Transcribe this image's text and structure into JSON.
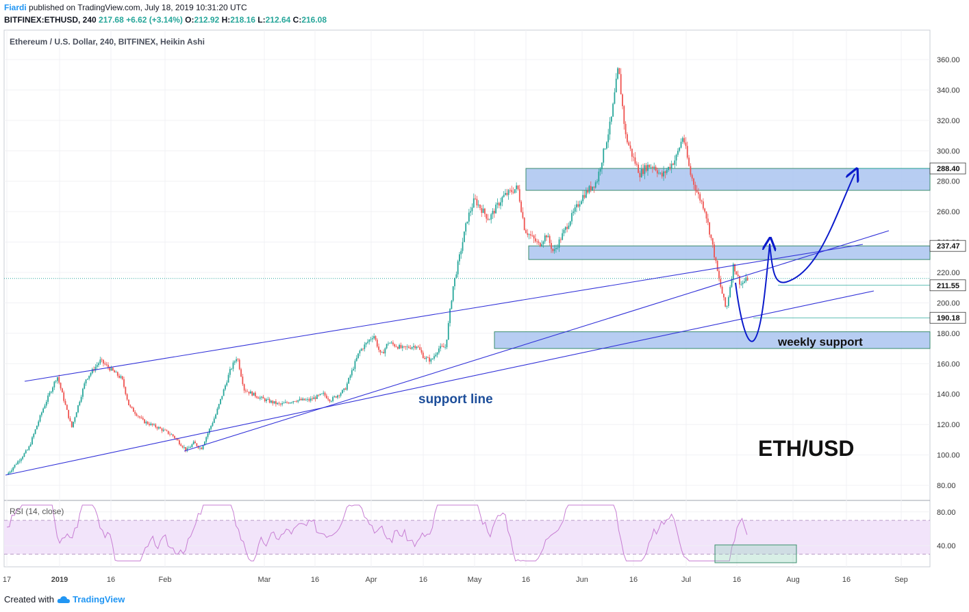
{
  "header": {
    "author": "Fiardi",
    "published_text": "published on TradingView.com, July 18, 2019 10:31:20 UTC",
    "symbol": "BITFINEX:ETHUSD, 240",
    "last": "217.68",
    "change": "+6.62 (+3.14%)",
    "o_label": "O:",
    "o": "212.92",
    "h_label": "H:",
    "h": "218.16",
    "l_label": "L:",
    "l": "212.64",
    "c_label": "C:",
    "c": "216.08"
  },
  "footer": {
    "created_with": "Created with",
    "brand": "TradingView"
  },
  "colors": {
    "up": "#26a69a",
    "down": "#ef5350",
    "zone_fill": "#aac4f0",
    "zone_stroke": "#3a8c6e",
    "trendline": "#3030d8",
    "arrow": "#0a1acb",
    "rsi_line": "#c77dd3",
    "rsi_band": "#f2e4fa",
    "price_line": "#26a69a"
  },
  "chart_data": {
    "type": "candlestick",
    "title": "Ethereum / U.S. Dollar, 240, BITFINEX, Heikin Ashi",
    "x_ticks": [
      "17",
      "2019",
      "16",
      "Feb",
      "Mar",
      "16",
      "Apr",
      "16",
      "May",
      "16",
      "Jun",
      "16",
      "Jul",
      "16",
      "Aug",
      "16",
      "Sep"
    ],
    "y_ticks": [
      "80.00",
      "100.00",
      "120.00",
      "140.00",
      "160.00",
      "180.00",
      "200.00",
      "220.00",
      "240.00",
      "260.00",
      "280.00",
      "300.00",
      "320.00",
      "340.00",
      "360.00"
    ],
    "ylim": [
      72,
      370
    ],
    "price_levels": [
      {
        "label": "288.40",
        "value": 288.4
      },
      {
        "label": "237.47",
        "value": 237.47
      },
      {
        "label": "211.55",
        "value": 211.55
      },
      {
        "label": "190.18",
        "value": 190.18
      }
    ],
    "price_path": [
      [
        0,
        87
      ],
      [
        3,
        104
      ],
      [
        5,
        130
      ],
      [
        7,
        152
      ],
      [
        9,
        118
      ],
      [
        11,
        150
      ],
      [
        13,
        162
      ],
      [
        15,
        154
      ],
      [
        16,
        150
      ],
      [
        17,
        132
      ],
      [
        19,
        122
      ],
      [
        21,
        118
      ],
      [
        23,
        113
      ],
      [
        25,
        103
      ],
      [
        26,
        108
      ],
      [
        27,
        104
      ],
      [
        29,
        126
      ],
      [
        31,
        155
      ],
      [
        32,
        165
      ],
      [
        33,
        143
      ],
      [
        35,
        138
      ],
      [
        36,
        136
      ],
      [
        38,
        133
      ],
      [
        40,
        136
      ],
      [
        42,
        136
      ],
      [
        44,
        140
      ],
      [
        45,
        136
      ],
      [
        47,
        143
      ],
      [
        49,
        168
      ],
      [
        51,
        179
      ],
      [
        52,
        165
      ],
      [
        53,
        174
      ],
      [
        55,
        170
      ],
      [
        57,
        172
      ],
      [
        58,
        164
      ],
      [
        59,
        162
      ],
      [
        60,
        170
      ],
      [
        61,
        171
      ],
      [
        62,
        210
      ],
      [
        63,
        232
      ],
      [
        64,
        255
      ],
      [
        65,
        268
      ],
      [
        67,
        255
      ],
      [
        69,
        270
      ],
      [
        71,
        276
      ],
      [
        72,
        248
      ],
      [
        74,
        238
      ],
      [
        75,
        245
      ],
      [
        76,
        233
      ],
      [
        78,
        252
      ],
      [
        80,
        270
      ],
      [
        82,
        280
      ],
      [
        84,
        320
      ],
      [
        85,
        355
      ],
      [
        86,
        310
      ],
      [
        87,
        296
      ],
      [
        88,
        285
      ],
      [
        89,
        290
      ],
      [
        90,
        290
      ],
      [
        91,
        283
      ],
      [
        93,
        295
      ],
      [
        94,
        310
      ],
      [
        95,
        285
      ],
      [
        96,
        272
      ],
      [
        97,
        262
      ],
      [
        98,
        240
      ],
      [
        99,
        215
      ],
      [
        100,
        195
      ],
      [
        101,
        225
      ],
      [
        102,
        212
      ],
      [
        103,
        216
      ]
    ],
    "annotations": [
      {
        "text": "support line"
      },
      {
        "text": "weekly support"
      },
      {
        "text": "ETH/USD"
      }
    ],
    "rsi": {
      "label": "RSI (14, close)",
      "y_ticks": [
        "40.00",
        "80.00"
      ],
      "ylim": [
        15,
        92
      ],
      "bands": [
        30,
        70
      ]
    }
  }
}
